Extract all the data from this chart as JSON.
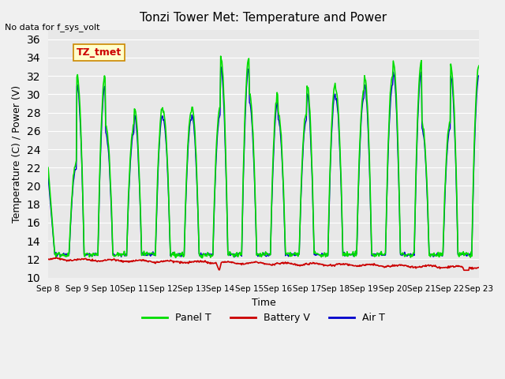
{
  "title": "Tonzi Tower Met: Temperature and Power",
  "ylabel": "Temperature (C) / Power (V)",
  "xlabel": "Time",
  "ylim": [
    10,
    37
  ],
  "yticks": [
    10,
    12,
    14,
    16,
    18,
    20,
    22,
    24,
    26,
    28,
    30,
    32,
    34,
    36
  ],
  "xtick_labels": [
    "Sep 8",
    "Sep 9",
    "Sep 10",
    "Sep 11",
    "Sep 12",
    "Sep 13",
    "Sep 14",
    "Sep 15",
    "Sep 16",
    "Sep 17",
    "Sep 18",
    "Sep 19",
    "Sep 20",
    "Sep 21",
    "Sep 22",
    "Sep 23"
  ],
  "no_data_text": "No data for f_sys_volt",
  "legend_label_text": "TZ_tmet",
  "background_color": "#e8e8e8",
  "panel_color": "#00dd00",
  "battery_color": "#cc0000",
  "air_color": "#0000cc",
  "grid_color": "#ffffff",
  "n_days": 15,
  "legend_items": [
    "Panel T",
    "Battery V",
    "Air T"
  ],
  "legend_colors": [
    "#00dd00",
    "#cc0000",
    "#0000cc"
  ]
}
